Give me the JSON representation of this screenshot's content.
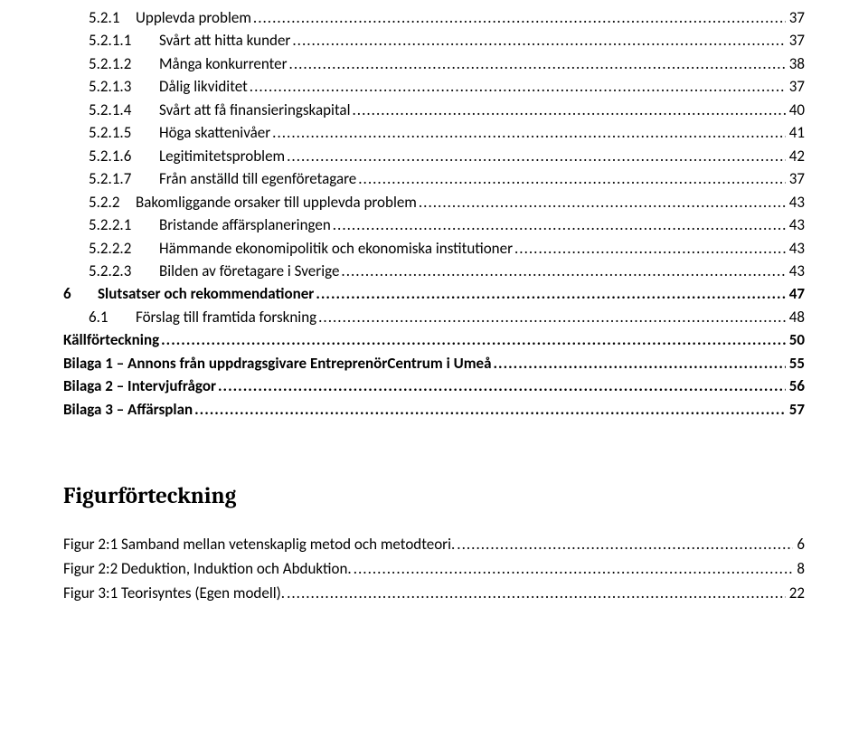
{
  "toc": [
    {
      "lvl": "lvl2",
      "num": "5.2.1",
      "label": "Upplevda problem",
      "page": "37"
    },
    {
      "lvl": "lvl3",
      "num": "5.2.1.1",
      "label": "Svårt att hitta kunder",
      "page": "37"
    },
    {
      "lvl": "lvl3",
      "num": "5.2.1.2",
      "label": "Många konkurrenter",
      "page": "38"
    },
    {
      "lvl": "lvl3",
      "num": "5.2.1.3",
      "label": "Dålig likviditet",
      "page": "37"
    },
    {
      "lvl": "lvl3",
      "num": "5.2.1.4",
      "label": "Svårt att få finansieringskapital",
      "page": "40"
    },
    {
      "lvl": "lvl3",
      "num": "5.2.1.5",
      "label": "Höga skattenivåer",
      "page": "41"
    },
    {
      "lvl": "lvl3",
      "num": "5.2.1.6",
      "label": "Legitimitetsproblem",
      "page": "42"
    },
    {
      "lvl": "lvl3",
      "num": "5.2.1.7",
      "label": "Från anställd till egenföretagare",
      "page": "37"
    },
    {
      "lvl": "lvl2",
      "num": "5.2.2",
      "label": "Bakomliggande orsaker till upplevda problem",
      "page": "43"
    },
    {
      "lvl": "lvl3",
      "num": "5.2.2.1",
      "label": "Bristande affärsplaneringen",
      "page": "43"
    },
    {
      "lvl": "lvl3",
      "num": "5.2.2.2",
      "label": "Hämmande ekonomipolitik och ekonomiska institutioner",
      "page": "43"
    },
    {
      "lvl": "lvl3",
      "num": "5.2.2.3",
      "label": "Bilden av företagare i Sverige",
      "page": "43"
    },
    {
      "lvl": "lvl1",
      "num": "6",
      "label": "Slutsatser och rekommendationer",
      "page": "47"
    },
    {
      "lvl": "lvl2",
      "num": "6.1",
      "label": "Förslag till framtida forskning",
      "page": "48"
    },
    {
      "lvl": "nonum",
      "num": "",
      "label": "Källförteckning",
      "page": "50"
    },
    {
      "lvl": "nonum",
      "num": "",
      "label": "Bilaga 1 – Annons från uppdragsgivare EntreprenörCentrum i Umeå",
      "page": "55"
    },
    {
      "lvl": "nonum",
      "num": "",
      "label": "Bilaga 2 – Intervjufrågor",
      "page": "56"
    },
    {
      "lvl": "nonum",
      "num": "",
      "label": "Bilaga 3 – Affärsplan",
      "page": "57"
    }
  ],
  "figSectionTitle": "Figurförteckning",
  "figures": [
    {
      "label": "Figur 2:1 Samband mellan vetenskaplig metod och metodteori.",
      "page": "6"
    },
    {
      "label": "Figur 2:2 Deduktion, Induktion och Abduktion.",
      "page": "8"
    },
    {
      "label": "Figur 3:1 Teorisyntes (Egen modell).",
      "page": "22"
    }
  ]
}
